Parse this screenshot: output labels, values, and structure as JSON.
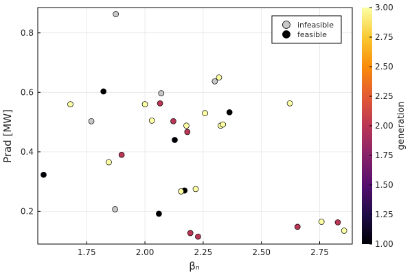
{
  "chart_data": {
    "type": "scatter",
    "title": "",
    "xlabel": "βₙ",
    "ylabel": "Prad [MW]",
    "xlim": [
      1.54,
      2.89
    ],
    "ylim": [
      0.09,
      0.885
    ],
    "xticks": [
      1.75,
      2.0,
      2.25,
      2.5,
      2.75
    ],
    "xtick_labels": [
      "1.75",
      "2.00",
      "2.25",
      "2.50",
      "2.75"
    ],
    "yticks": [
      0.2,
      0.4,
      0.6,
      0.8
    ],
    "ytick_labels": [
      "0.2",
      "0.4",
      "0.6",
      "0.8"
    ],
    "grid": true,
    "legend_position": "top-right",
    "legend": [
      {
        "label": "infeasible",
        "color": "#c8c8c8"
      },
      {
        "label": "feasible",
        "color": "#000000"
      }
    ],
    "colorbar": {
      "label": "generation",
      "min": 1.0,
      "max": 3.0,
      "ticks": [
        1.0,
        1.25,
        1.5,
        1.75,
        2.0,
        2.25,
        2.5,
        2.75,
        3.0
      ],
      "tick_labels": [
        "1.00",
        "1.25",
        "1.50",
        "1.75",
        "2.00",
        "2.25",
        "2.50",
        "2.75",
        "3.00"
      ],
      "colors": [
        "#000004",
        "#1f0c48",
        "#550f6d",
        "#88226a",
        "#ba3655",
        "#e35933",
        "#f98c0a",
        "#f9c932",
        "#fcffa4"
      ]
    },
    "infeasible": [
      {
        "x": 1.875,
        "y": 0.863
      },
      {
        "x": 1.77,
        "y": 0.503
      },
      {
        "x": 2.07,
        "y": 0.597
      },
      {
        "x": 2.3,
        "y": 0.637
      },
      {
        "x": 1.872,
        "y": 0.207
      }
    ],
    "feasible": [
      {
        "x": 1.822,
        "y": 0.603,
        "gen": 1
      },
      {
        "x": 1.565,
        "y": 0.323,
        "gen": 1
      },
      {
        "x": 2.128,
        "y": 0.44,
        "gen": 1
      },
      {
        "x": 2.363,
        "y": 0.533,
        "gen": 1
      },
      {
        "x": 2.06,
        "y": 0.192,
        "gen": 1
      },
      {
        "x": 2.17,
        "y": 0.27,
        "gen": 1
      },
      {
        "x": 2.065,
        "y": 0.563,
        "gen": 2
      },
      {
        "x": 2.122,
        "y": 0.503,
        "gen": 2
      },
      {
        "x": 2.182,
        "y": 0.467,
        "gen": 2
      },
      {
        "x": 1.9,
        "y": 0.39,
        "gen": 2
      },
      {
        "x": 2.195,
        "y": 0.127,
        "gen": 2
      },
      {
        "x": 2.228,
        "y": 0.115,
        "gen": 2
      },
      {
        "x": 2.655,
        "y": 0.148,
        "gen": 2
      },
      {
        "x": 2.828,
        "y": 0.163,
        "gen": 2
      },
      {
        "x": 1.68,
        "y": 0.56,
        "gen": 3
      },
      {
        "x": 2.0,
        "y": 0.56,
        "gen": 3
      },
      {
        "x": 2.03,
        "y": 0.505,
        "gen": 3
      },
      {
        "x": 2.178,
        "y": 0.488,
        "gen": 3
      },
      {
        "x": 2.258,
        "y": 0.53,
        "gen": 3
      },
      {
        "x": 2.318,
        "y": 0.65,
        "gen": 3
      },
      {
        "x": 2.325,
        "y": 0.488,
        "gen": 3
      },
      {
        "x": 2.335,
        "y": 0.492,
        "gen": 3
      },
      {
        "x": 2.622,
        "y": 0.563,
        "gen": 3
      },
      {
        "x": 1.845,
        "y": 0.365,
        "gen": 3
      },
      {
        "x": 2.155,
        "y": 0.267,
        "gen": 3
      },
      {
        "x": 2.218,
        "y": 0.275,
        "gen": 3
      },
      {
        "x": 2.758,
        "y": 0.165,
        "gen": 3
      },
      {
        "x": 2.855,
        "y": 0.135,
        "gen": 3
      }
    ]
  }
}
